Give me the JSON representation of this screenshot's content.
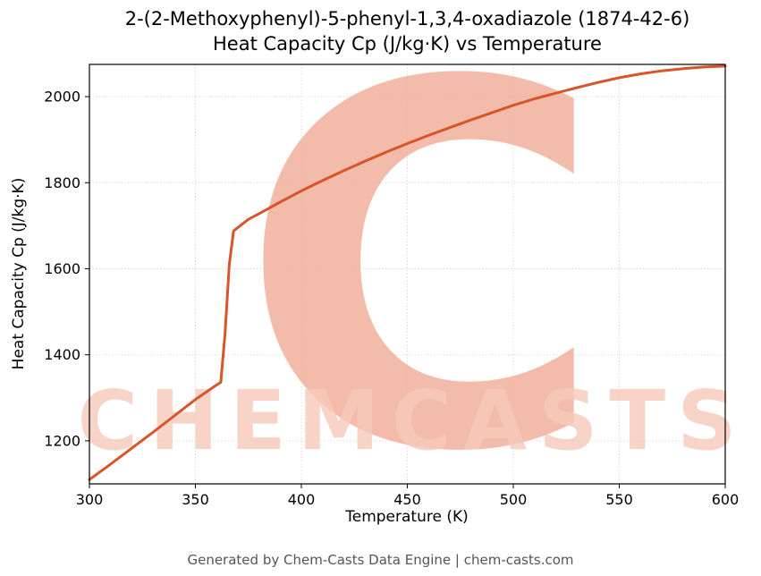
{
  "title_line1": "2-(2-Methoxyphenyl)-5-phenyl-1,3,4-oxadiazole (1874-42-6)",
  "title_line2": "Heat Capacity Cp (J/kg·K) vs Temperature",
  "footer": "Generated by Chem-Casts Data Engine | chem-casts.com",
  "watermark": {
    "letter": "C",
    "text": "CHEMCASTS",
    "logo_color": "#f0af9b",
    "text_color": "#f6c9ba"
  },
  "chart_data": {
    "type": "line",
    "title": "2-(2-Methoxyphenyl)-5-phenyl-1,3,4-oxadiazole (1874-42-6) Heat Capacity Cp (J/kg·K) vs Temperature",
    "xlabel": "Temperature (K)",
    "ylabel": "Heat Capacity Cp (J/kg·K)",
    "xlim": [
      300,
      600
    ],
    "ylim": [
      1100,
      2075
    ],
    "xticks": [
      300,
      350,
      400,
      450,
      500,
      550,
      600
    ],
    "yticks": [
      1200,
      1400,
      1600,
      1800,
      2000
    ],
    "grid": true,
    "legend": "none",
    "line_color": "#d8542b",
    "annotation": "step jump in Cp near T = 365 K (solid-liquid transition)",
    "series": [
      {
        "name": "Heat Capacity Cp",
        "x": [
          300,
          310,
          320,
          330,
          340,
          350,
          360,
          362,
          364,
          366,
          368,
          375,
          380,
          390,
          400,
          410,
          420,
          430,
          440,
          450,
          460,
          470,
          480,
          490,
          500,
          510,
          520,
          530,
          540,
          550,
          560,
          570,
          580,
          590,
          600
        ],
        "y": [
          1110,
          1146,
          1183,
          1220,
          1258,
          1296,
          1330,
          1336,
          1450,
          1610,
          1688,
          1715,
          1728,
          1755,
          1781,
          1805,
          1828,
          1850,
          1871,
          1891,
          1910,
          1928,
          1946,
          1963,
          1980,
          1995,
          2008,
          2021,
          2033,
          2044,
          2053,
          2060,
          2065,
          2069,
          2071
        ]
      }
    ]
  }
}
